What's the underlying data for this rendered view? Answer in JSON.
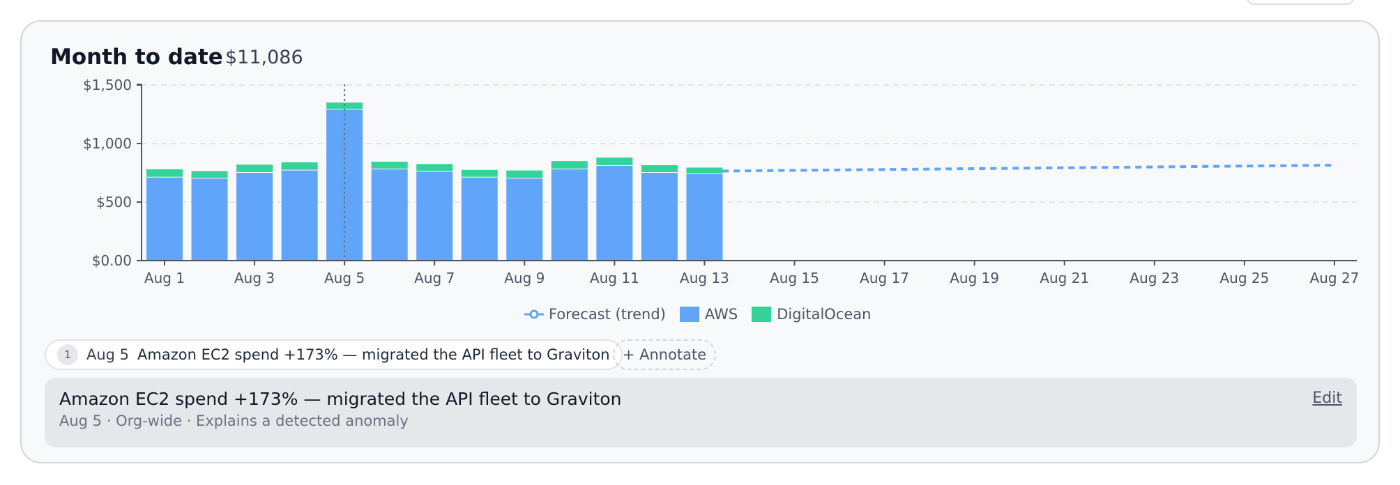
{
  "card": {
    "title": "Month to date",
    "total": "$11,086"
  },
  "legend": {
    "forecast": "Forecast (trend)",
    "aws": "AWS",
    "digitalocean": "DigitalOcean"
  },
  "colors": {
    "aws": "#60a5fa",
    "digitalocean": "#34d399",
    "forecast": "#60a5fa",
    "grid": "#d9dde3",
    "axis": "#4b5563"
  },
  "annotation": {
    "number": "1",
    "date": "Aug 5",
    "text": "Amazon EC2 spend +173% — migrated the API fleet to Graviton",
    "annotate_label": "+ Annotate"
  },
  "detail": {
    "title": "Amazon EC2 spend +173% — migrated the API fleet to Graviton",
    "meta": "Aug 5 · Org-wide · Explains a detected anomaly",
    "edit_label": "Edit"
  },
  "chart_data": {
    "type": "bar",
    "stacked": true,
    "x_range": [
      1,
      27
    ],
    "ylim": [
      0,
      1500
    ],
    "y_ticks": [
      0,
      500,
      1000,
      1500
    ],
    "y_tick_labels": [
      "$0.00",
      "$500",
      "$1,000",
      "$1,500"
    ],
    "x_ticks": [
      1,
      3,
      5,
      7,
      9,
      11,
      13,
      15,
      17,
      19,
      21,
      23,
      25,
      27
    ],
    "x_tick_labels": [
      "Aug 1",
      "Aug 3",
      "Aug 5",
      "Aug 7",
      "Aug 9",
      "Aug 11",
      "Aug 13",
      "Aug 15",
      "Aug 17",
      "Aug 19",
      "Aug 21",
      "Aug 23",
      "Aug 25",
      "Aug 27"
    ],
    "categories": [
      "Aug 1",
      "Aug 2",
      "Aug 3",
      "Aug 4",
      "Aug 5",
      "Aug 6",
      "Aug 7",
      "Aug 8",
      "Aug 9",
      "Aug 10",
      "Aug 11",
      "Aug 12",
      "Aug 13"
    ],
    "series": [
      {
        "name": "AWS",
        "values": [
          710,
          700,
          750,
          770,
          1290,
          780,
          760,
          710,
          700,
          780,
          810,
          750,
          740
        ]
      },
      {
        "name": "DigitalOcean",
        "values": [
          70,
          65,
          70,
          70,
          60,
          65,
          65,
          65,
          70,
          70,
          70,
          65,
          55
        ]
      }
    ],
    "forecast": {
      "name": "Forecast (trend)",
      "x": [
        13.4,
        27
      ],
      "y": [
        765,
        815
      ]
    },
    "marker_x": 5,
    "grid": true,
    "legend_position": "bottom-center"
  }
}
